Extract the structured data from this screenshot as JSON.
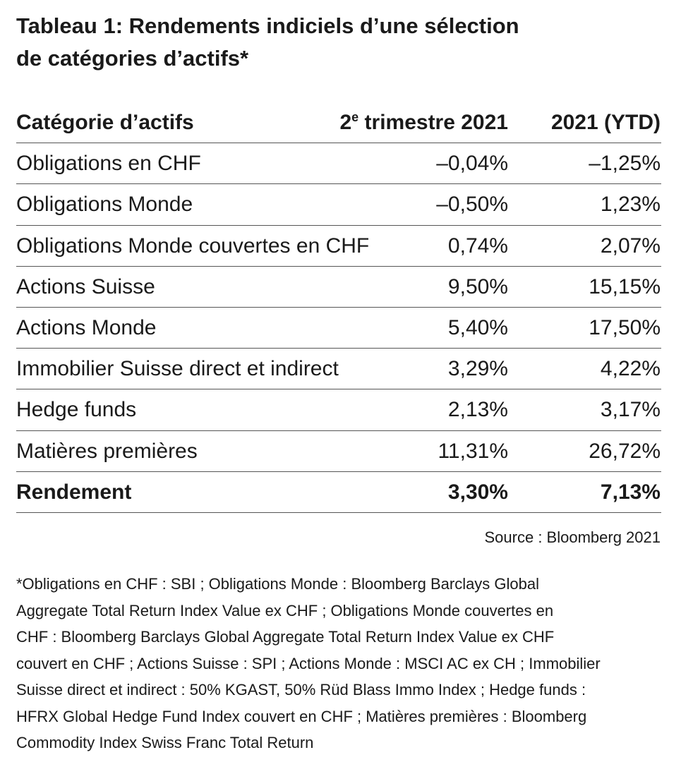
{
  "title_lines": [
    "Tableau 1: Rendements indiciels d’une sélection",
    "de catégories d’actifs*"
  ],
  "table": {
    "header": [
      "Catégorie d’actifs",
      {
        "base": "2",
        "sup": "e",
        "rest": " trimestre 2021"
      },
      "2021 (YTD)"
    ],
    "rows": [
      [
        "Obligations en CHF",
        "–0,04%",
        "–1,25%"
      ],
      [
        "Obligations Monde",
        "–0,50%",
        "1,23%"
      ],
      [
        "Obligations Monde couvertes en CHF",
        "0,74%",
        "2,07%"
      ],
      [
        "Actions Suisse",
        "9,50%",
        "15,15%"
      ],
      [
        "Actions Monde",
        "5,40%",
        "17,50%"
      ],
      [
        "Immobilier Suisse direct et indirect",
        "3,29%",
        "4,22%"
      ],
      [
        "Hedge funds",
        "2,13%",
        "3,17%"
      ],
      [
        "Matières premières",
        "11,31%",
        "26,72%"
      ]
    ],
    "total": [
      "Rendement",
      "3,30%",
      "7,13%"
    ]
  },
  "source": "Source : Bloomberg 2021",
  "footnote_lines": [
    "*Obligations en CHF : SBI ; Obligations Monde : Bloomberg Barclays Global",
    "Aggregate Total Return Index Value ex CHF ; Obligations Monde couvertes en",
    "CHF : Bloomberg Barclays Global Aggregate Total Return Index Value ex CHF",
    "couvert en CHF ; Actions Suisse : SPI ; Actions Monde : MSCI AC ex CH ; Immobilier",
    "Suisse direct et indirect : 50% KGAST, 50% Rüd Blass Immo Index ; Hedge funds :",
    "HFRX Global Hedge Fund Index couvert en CHF ; Matières premières : Bloomberg",
    "Commodity Index Swiss Franc Total Return"
  ]
}
